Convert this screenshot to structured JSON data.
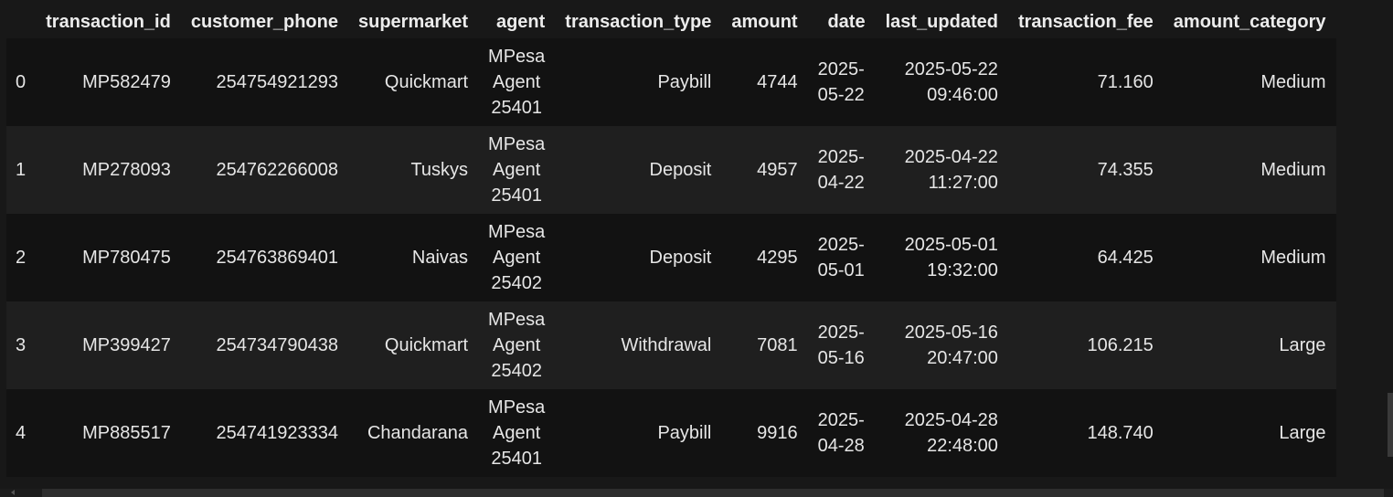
{
  "table": {
    "columns": [
      "",
      "transaction_id",
      "customer_phone",
      "supermarket",
      "agent",
      "transaction_type",
      "amount",
      "date",
      "last_updated",
      "transaction_fee",
      "amount_category"
    ],
    "rows": [
      {
        "index": "0",
        "transaction_id": "MP582479",
        "customer_phone": "254754921293",
        "supermarket": "Quickmart",
        "agent": "MPesa Agent 25401",
        "transaction_type": "Paybill",
        "amount": "4744",
        "date": "2025-05-22",
        "last_updated": "2025-05-22 09:46:00",
        "transaction_fee": "71.160",
        "amount_category": "Medium"
      },
      {
        "index": "1",
        "transaction_id": "MP278093",
        "customer_phone": "254762266008",
        "supermarket": "Tuskys",
        "agent": "MPesa Agent 25401",
        "transaction_type": "Deposit",
        "amount": "4957",
        "date": "2025-04-22",
        "last_updated": "2025-04-22 11:27:00",
        "transaction_fee": "74.355",
        "amount_category": "Medium"
      },
      {
        "index": "2",
        "transaction_id": "MP780475",
        "customer_phone": "254763869401",
        "supermarket": "Naivas",
        "agent": "MPesa Agent 25402",
        "transaction_type": "Deposit",
        "amount": "4295",
        "date": "2025-05-01",
        "last_updated": "2025-05-01 19:32:00",
        "transaction_fee": "64.425",
        "amount_category": "Medium"
      },
      {
        "index": "3",
        "transaction_id": "MP399427",
        "customer_phone": "254734790438",
        "supermarket": "Quickmart",
        "agent": "MPesa Agent 25402",
        "transaction_type": "Withdrawal",
        "amount": "7081",
        "date": "2025-05-16",
        "last_updated": "2025-05-16 20:47:00",
        "transaction_fee": "106.215",
        "amount_category": "Large"
      },
      {
        "index": "4",
        "transaction_id": "MP885517",
        "customer_phone": "254741923334",
        "supermarket": "Chandarana",
        "agent": "MPesa Agent 25401",
        "transaction_type": "Paybill",
        "amount": "9916",
        "date": "2025-04-28",
        "last_updated": "2025-04-28 22:48:00",
        "transaction_fee": "148.740",
        "amount_category": "Large"
      }
    ]
  },
  "scrollbar": {
    "arrow_icon": "chevron-left-icon"
  }
}
